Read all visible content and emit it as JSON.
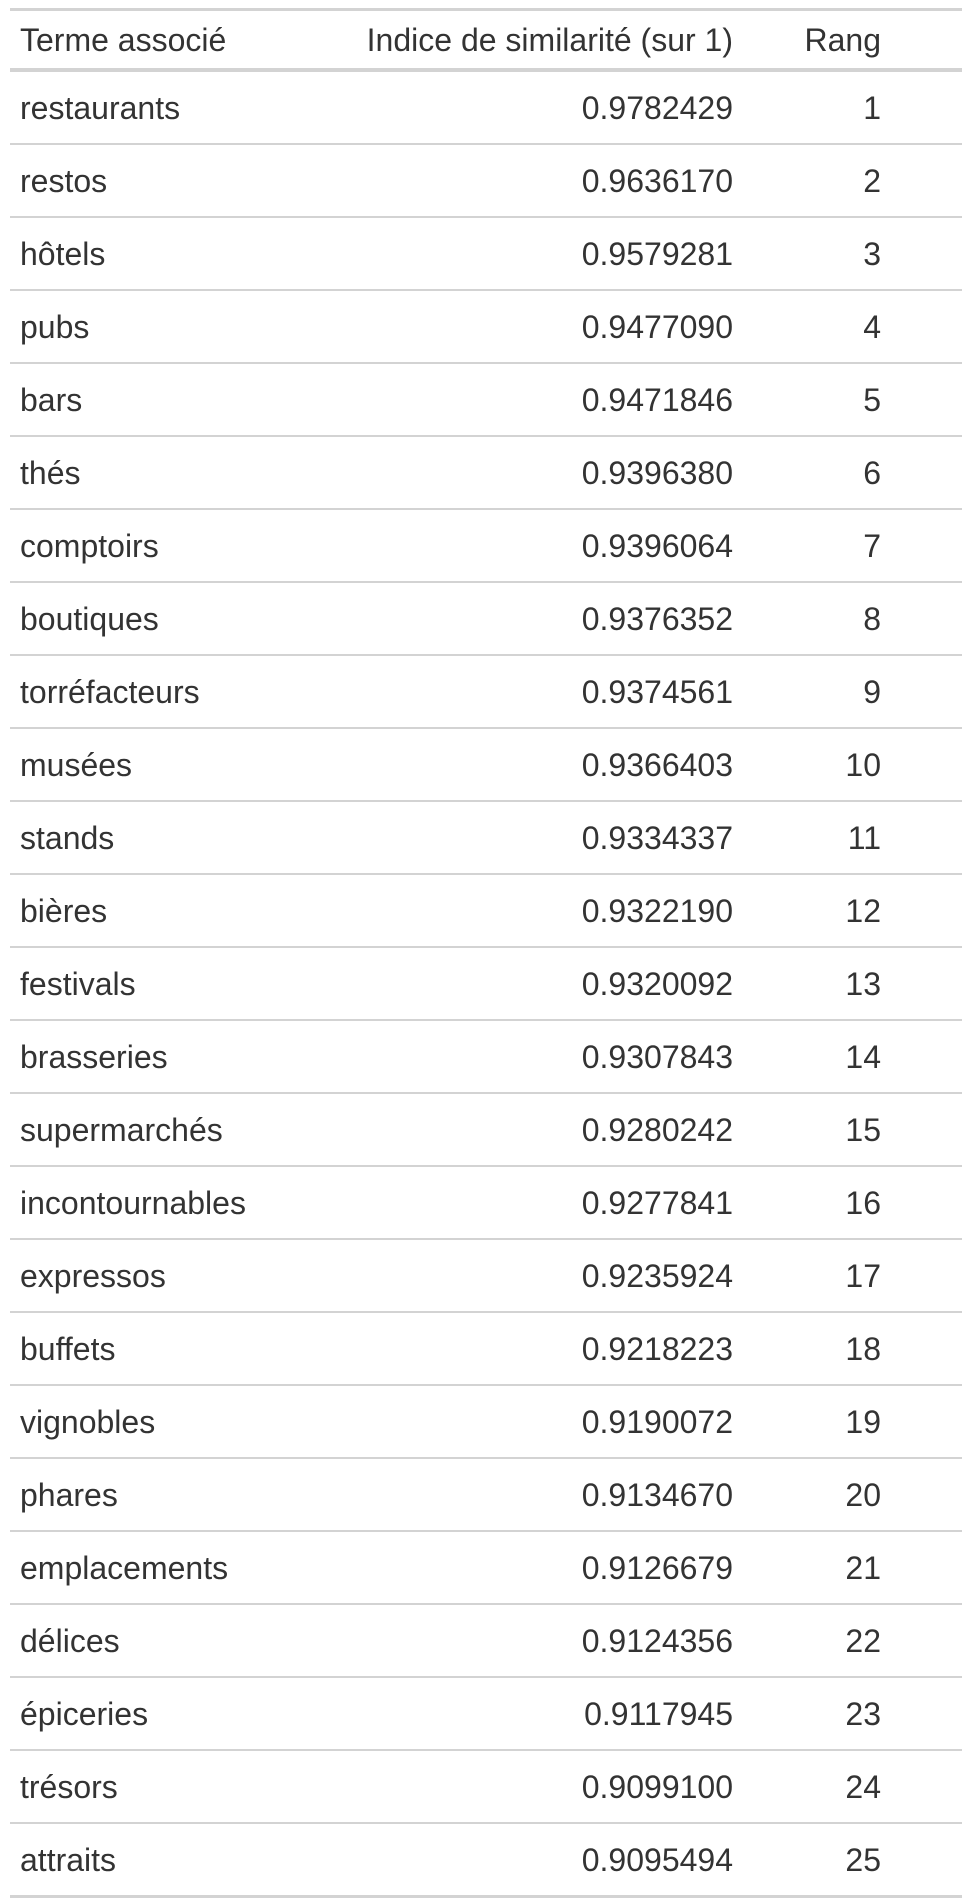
{
  "table": {
    "headers": {
      "term": "Terme associé",
      "score": "Indice de similarité (sur 1)",
      "rank": "Rang"
    },
    "rows": [
      {
        "term": "restaurants",
        "score": "0.9782429",
        "rank": "1"
      },
      {
        "term": "restos",
        "score": "0.9636170",
        "rank": "2"
      },
      {
        "term": "hôtels",
        "score": "0.9579281",
        "rank": "3"
      },
      {
        "term": "pubs",
        "score": "0.9477090",
        "rank": "4"
      },
      {
        "term": "bars",
        "score": "0.9471846",
        "rank": "5"
      },
      {
        "term": "thés",
        "score": "0.9396380",
        "rank": "6"
      },
      {
        "term": "comptoirs",
        "score": "0.9396064",
        "rank": "7"
      },
      {
        "term": "boutiques",
        "score": "0.9376352",
        "rank": "8"
      },
      {
        "term": "torréfacteurs",
        "score": "0.9374561",
        "rank": "9"
      },
      {
        "term": "musées",
        "score": "0.9366403",
        "rank": "10"
      },
      {
        "term": "stands",
        "score": "0.9334337",
        "rank": "11"
      },
      {
        "term": "bières",
        "score": "0.9322190",
        "rank": "12"
      },
      {
        "term": "festivals",
        "score": "0.9320092",
        "rank": "13"
      },
      {
        "term": "brasseries",
        "score": "0.9307843",
        "rank": "14"
      },
      {
        "term": "supermarchés",
        "score": "0.9280242",
        "rank": "15"
      },
      {
        "term": "incontournables",
        "score": "0.9277841",
        "rank": "16"
      },
      {
        "term": "expressos",
        "score": "0.9235924",
        "rank": "17"
      },
      {
        "term": "buffets",
        "score": "0.9218223",
        "rank": "18"
      },
      {
        "term": "vignobles",
        "score": "0.9190072",
        "rank": "19"
      },
      {
        "term": "phares",
        "score": "0.9134670",
        "rank": "20"
      },
      {
        "term": "emplacements",
        "score": "0.9126679",
        "rank": "21"
      },
      {
        "term": "délices",
        "score": "0.9124356",
        "rank": "22"
      },
      {
        "term": "épiceries",
        "score": "0.9117945",
        "rank": "23"
      },
      {
        "term": "trésors",
        "score": "0.9099100",
        "rank": "24"
      },
      {
        "term": "attraits",
        "score": "0.9095494",
        "rank": "25"
      }
    ]
  }
}
